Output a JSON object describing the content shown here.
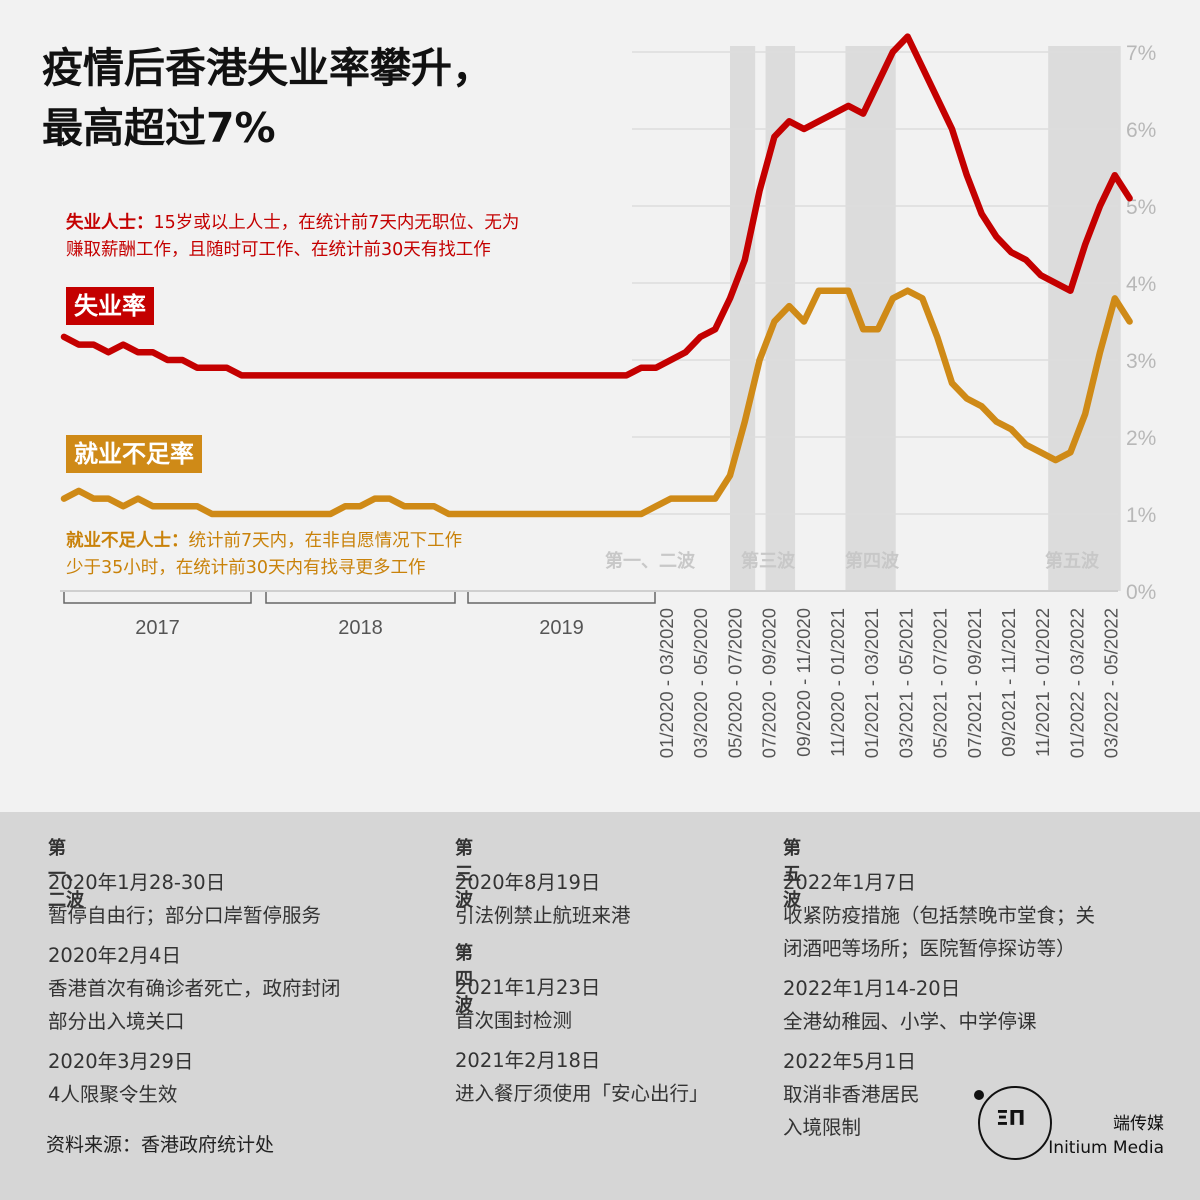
{
  "title_line1": "疫情后香港失业率攀升，",
  "title_line2": "最高超过7%",
  "def_unemployed_term": "失业人士：",
  "def_unemployed_line1": "15岁或以上人士，在统计前7天内无职位、无为",
  "def_unemployed_line2": "赚取薪酬工作，且随时可工作、在统计前30天有找工作",
  "def_under_term": "就业不足人士：",
  "def_under_line1": "统计前7天内，在非自愿情况下工作",
  "def_under_line2": "少于35小时，在统计前30天内有找寻更多工作",
  "label_unemployment": "失业率",
  "label_underemployment": "就业不足率",
  "colors": {
    "unemployment": "#c40000",
    "underemployment": "#cf8a17",
    "shade": "#dcdcdc",
    "grid": "#dddddd",
    "axis_text": "#b8b8b8"
  },
  "chart_data": {
    "type": "line",
    "ylim": [
      0,
      7
    ],
    "yticks": [
      "0%",
      "1%",
      "2%",
      "3%",
      "4%",
      "5%",
      "6%",
      "7%"
    ],
    "year_labels": [
      "2017",
      "2018",
      "2019"
    ],
    "period_labels": [
      "01/2020 - 03/2020",
      "03/2020 - 05/2020",
      "05/2020 - 07/2020",
      "07/2020 - 09/2020",
      "09/2020 - 11/2020",
      "11/2020 - 01/2021",
      "01/2021 - 03/2021",
      "03/2021 - 05/2021",
      "05/2021 - 07/2021",
      "07/2021 - 09/2021",
      "09/2021 - 11/2021",
      "11/2021 - 01/2022",
      "01/2022 - 03/2022",
      "03/2022 - 05/2022"
    ],
    "wave_labels": [
      "第一、二波",
      "第三波",
      "第四波",
      "第五波"
    ],
    "series": [
      {
        "name": "失业率",
        "values": [
          3.3,
          3.2,
          3.2,
          3.1,
          3.2,
          3.1,
          3.1,
          3.0,
          3.0,
          2.9,
          2.9,
          2.9,
          2.8,
          2.8,
          2.8,
          2.8,
          2.8,
          2.8,
          2.8,
          2.8,
          2.8,
          2.8,
          2.8,
          2.8,
          2.8,
          2.8,
          2.8,
          2.8,
          2.8,
          2.8,
          2.8,
          2.8,
          2.8,
          2.8,
          2.8,
          2.8,
          2.8,
          2.8,
          2.8,
          2.9,
          2.9,
          3.0,
          3.1,
          3.3,
          3.4,
          3.8,
          4.3,
          5.2,
          5.9,
          6.1,
          6.0,
          6.1,
          6.2,
          6.3,
          6.2,
          6.6,
          7.0,
          7.2,
          6.8,
          6.4,
          6.0,
          5.4,
          4.9,
          4.6,
          4.4,
          4.3,
          4.1,
          4.0,
          3.9,
          4.5,
          5.0,
          5.4,
          5.1
        ]
      },
      {
        "name": "就业不足率",
        "values": [
          1.2,
          1.3,
          1.2,
          1.2,
          1.1,
          1.2,
          1.1,
          1.1,
          1.1,
          1.1,
          1.0,
          1.0,
          1.0,
          1.0,
          1.0,
          1.0,
          1.0,
          1.0,
          1.0,
          1.1,
          1.1,
          1.2,
          1.2,
          1.1,
          1.1,
          1.1,
          1.0,
          1.0,
          1.0,
          1.0,
          1.0,
          1.0,
          1.0,
          1.0,
          1.0,
          1.0,
          1.0,
          1.0,
          1.0,
          1.0,
          1.1,
          1.2,
          1.2,
          1.2,
          1.2,
          1.5,
          2.2,
          3.0,
          3.5,
          3.7,
          3.5,
          3.9,
          3.9,
          3.9,
          3.4,
          3.4,
          3.8,
          3.9,
          3.8,
          3.3,
          2.7,
          2.5,
          2.4,
          2.2,
          2.1,
          1.9,
          1.8,
          1.7,
          1.8,
          2.3,
          3.1,
          3.8,
          3.5
        ]
      }
    ]
  },
  "notes": {
    "col1": [
      {
        "heading": "第一、二波"
      },
      {
        "date": "2020年1月28-30日",
        "text": "暂停自由行；部分口岸暂停服务"
      },
      {
        "date": "2020年2月4日",
        "text": "香港首次有确诊者死亡，政府封闭",
        "text2": "部分出入境关口"
      },
      {
        "date": "2020年3月29日",
        "text": "4人限聚令生效"
      }
    ],
    "col2": [
      {
        "heading": "第三波"
      },
      {
        "date": "2020年8月19日",
        "text": "引法例禁止航班来港"
      },
      {
        "heading": "第四波"
      },
      {
        "date": "2021年1月23日",
        "text": "首次围封检测"
      },
      {
        "date": "2021年2月18日",
        "text": "进入餐厅须使用「安心出行」"
      }
    ],
    "col3": [
      {
        "heading": "第五波"
      },
      {
        "date": "2022年1月7日",
        "text": "收紧防疫措施（包括禁晚市堂食；关",
        "text2": "闭酒吧等场所；医院暂停探访等）"
      },
      {
        "date": "2022年1月14-20日",
        "text": "全港幼稚园、小学、中学停课"
      },
      {
        "date": "2022年5月1日",
        "text": "取消非香港居民",
        "text2": "入境限制"
      }
    ]
  },
  "source": "资料来源：香港政府统计处",
  "brand_cn": "端传媒",
  "brand_en": "Initium Media",
  "logo_mark": "ΞΠ"
}
